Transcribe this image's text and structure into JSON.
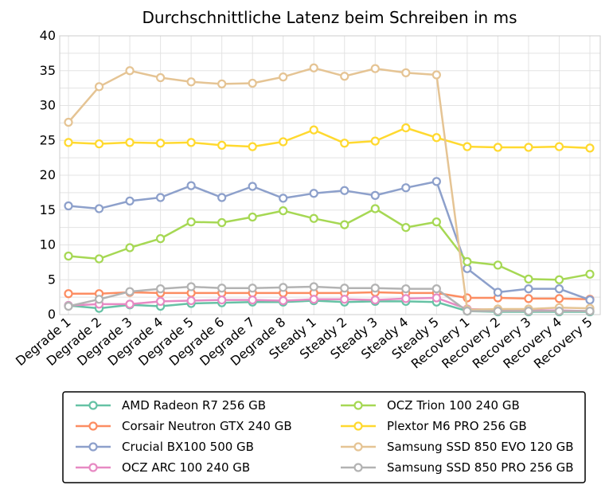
{
  "chart_data": {
    "type": "line",
    "title": "Durchschnittliche Latenz beim Schreiben in ms",
    "xlabel": "",
    "ylabel": "",
    "ylim": [
      0,
      40
    ],
    "yticks": [
      0,
      5,
      10,
      15,
      20,
      25,
      30,
      35,
      40
    ],
    "grid": true,
    "legend_position": "bottom",
    "categories": [
      "Degrade 1",
      "Degrade 2",
      "Degrade 3",
      "Degrade 4",
      "Degrade 5",
      "Degrade 6",
      "Degrade 7",
      "Degrade 8",
      "Steady 1",
      "Steady 2",
      "Steady 3",
      "Steady 4",
      "Steady 5",
      "Recovery 1",
      "Recovery 2",
      "Recovery 3",
      "Recovery 4",
      "Recovery 5"
    ],
    "series": [
      {
        "name": "AMD Radeon R7 256 GB",
        "color": "#66c2a5",
        "values": [
          1.3,
          0.9,
          1.4,
          1.2,
          1.6,
          1.7,
          1.8,
          1.8,
          2.0,
          1.8,
          1.9,
          1.9,
          1.8,
          0.5,
          0.4,
          0.4,
          0.4,
          0.4
        ]
      },
      {
        "name": "Corsair Neutron GTX 240 GB",
        "color": "#fc8d62",
        "values": [
          3.0,
          3.0,
          3.2,
          3.1,
          3.1,
          3.1,
          3.1,
          3.1,
          3.1,
          3.1,
          3.2,
          3.1,
          3.1,
          2.4,
          2.4,
          2.3,
          2.3,
          2.2
        ]
      },
      {
        "name": "Crucial BX100 500 GB",
        "color": "#8da0cb",
        "values": [
          15.6,
          15.2,
          16.3,
          16.8,
          18.5,
          16.8,
          18.4,
          16.7,
          17.4,
          17.8,
          17.1,
          18.2,
          19.1,
          6.6,
          3.2,
          3.7,
          3.7,
          2.1
        ]
      },
      {
        "name": "OCZ ARC 100 240 GB",
        "color": "#e78ac3",
        "values": [
          1.3,
          1.5,
          1.5,
          1.9,
          2.0,
          2.1,
          2.1,
          2.0,
          2.2,
          2.2,
          2.1,
          2.3,
          2.4,
          0.8,
          0.7,
          0.6,
          0.6,
          0.5
        ]
      },
      {
        "name": "OCZ Trion 100 240 GB",
        "color": "#a6d854",
        "values": [
          8.4,
          8.0,
          9.6,
          10.9,
          13.3,
          13.2,
          14.0,
          14.9,
          13.8,
          12.9,
          15.2,
          12.5,
          13.3,
          7.6,
          7.1,
          5.1,
          5.0,
          5.8
        ]
      },
      {
        "name": "Plextor M6 PRO 256 GB",
        "color": "#ffd92f",
        "values": [
          24.7,
          24.5,
          24.7,
          24.6,
          24.7,
          24.3,
          24.1,
          24.8,
          26.5,
          24.6,
          24.9,
          26.8,
          25.4,
          24.1,
          24.0,
          24.0,
          24.1,
          23.9
        ]
      },
      {
        "name": "Samsung SSD 850 EVO 120 GB",
        "color": "#e5c494",
        "values": [
          27.6,
          32.7,
          35.0,
          34.0,
          33.4,
          33.1,
          33.2,
          34.1,
          35.4,
          34.2,
          35.3,
          34.7,
          34.4,
          0.7,
          0.8,
          0.8,
          1.0,
          0.9
        ]
      },
      {
        "name": "Samsung SSD 850 PRO 256 GB",
        "color": "#b3b3b3",
        "values": [
          1.2,
          2.2,
          3.3,
          3.7,
          4.0,
          3.8,
          3.8,
          3.9,
          4.0,
          3.8,
          3.8,
          3.7,
          3.7,
          0.5,
          0.5,
          0.5,
          0.5,
          0.5
        ]
      }
    ]
  }
}
